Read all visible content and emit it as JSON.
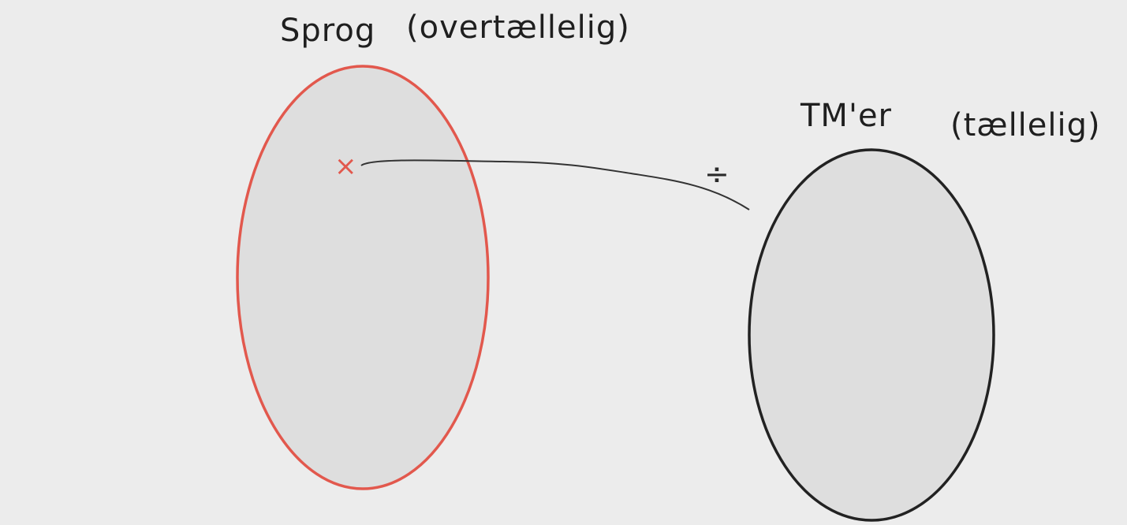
{
  "diagram": {
    "left_set": {
      "label": "Sprog",
      "qualifier": "(overtællelig)",
      "outline_color": "#e2584d",
      "fill_color": "#dedede"
    },
    "right_set": {
      "label": "TM'er",
      "qualifier": "(tællelig)",
      "outline_color": "#222222",
      "fill_color": "#dedede"
    },
    "element_marker": {
      "symbol": "×",
      "color": "#e2584d"
    },
    "mapping_symbol": "÷",
    "connector_color": "#333333"
  }
}
